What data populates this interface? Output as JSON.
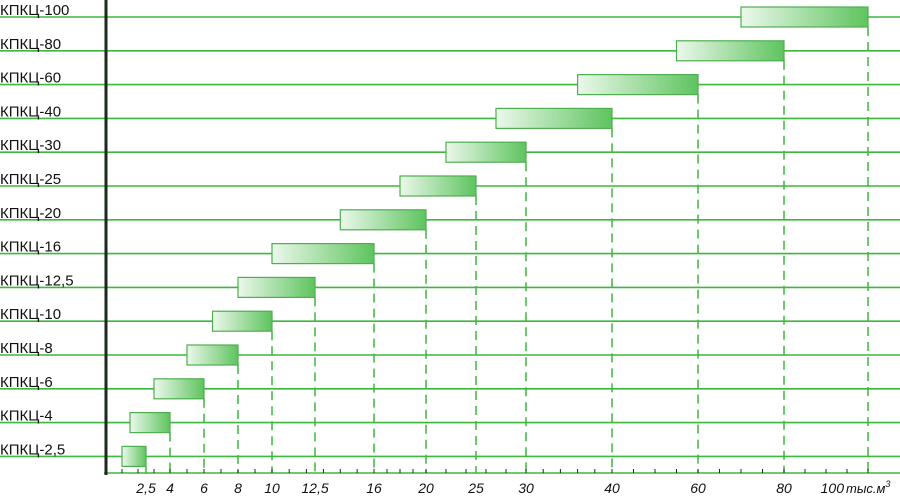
{
  "chart_data": {
    "type": "bar",
    "orientation": "horizontal-range",
    "categories": [
      "КПКЦ-100",
      "КПКЦ-80",
      "КПКЦ-60",
      "КПКЦ-40",
      "КПКЦ-30",
      "КПКЦ-25",
      "КПКЦ-20",
      "КПКЦ-16",
      "КПКЦ-12,5",
      "КПКЦ-10",
      "КПКЦ-8",
      "КПКЦ-6",
      "КПКЦ-4",
      "КПКЦ-2,5"
    ],
    "ranges": [
      [
        70,
        100
      ],
      [
        55,
        80
      ],
      [
        36,
        60
      ],
      [
        27,
        40
      ],
      [
        22,
        30
      ],
      [
        18,
        25
      ],
      [
        14,
        20
      ],
      [
        10,
        16
      ],
      [
        8,
        12.5
      ],
      [
        6.5,
        10
      ],
      [
        5,
        8
      ],
      [
        3,
        6
      ],
      [
        1.5,
        4
      ],
      [
        1,
        2.5
      ]
    ],
    "x_ticks": [
      "2,5",
      "4",
      "6",
      "8",
      "10",
      "12,5",
      "16",
      "20",
      "25",
      "30",
      "40",
      "60",
      "80",
      "100"
    ],
    "x_unit": "тыс.м",
    "x_unit_sup": "3",
    "grid": "horizontal",
    "colors": {
      "grid": "#3cb83c",
      "axis": "#1a2a1a",
      "bar_start": "#ecf8ec",
      "bar_end": "#5ec45e",
      "bar_stroke": "#4fae4f",
      "dash": "#3cb83c"
    }
  }
}
